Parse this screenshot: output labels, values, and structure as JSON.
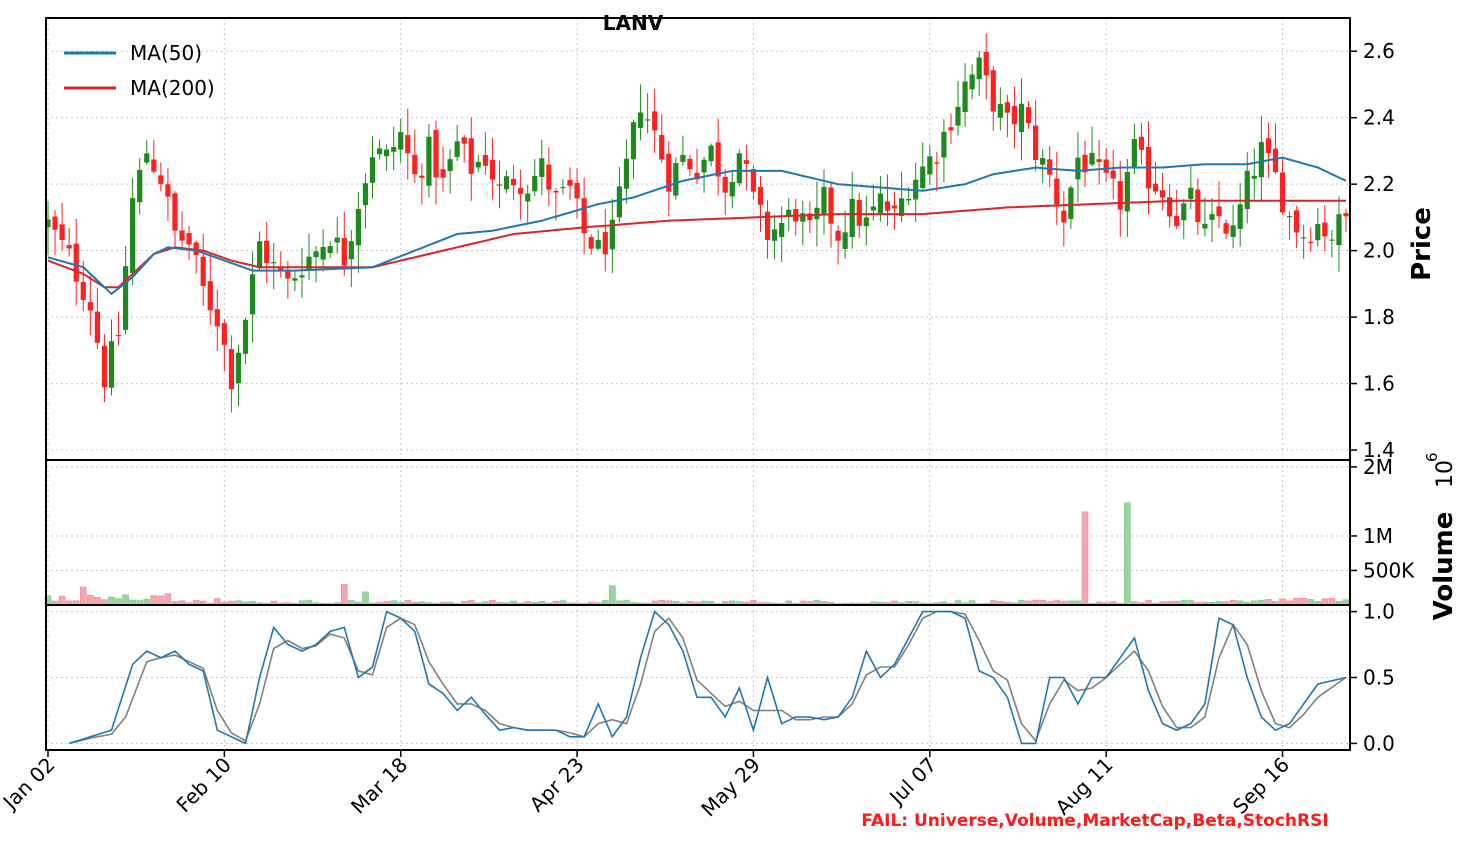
{
  "title": "LANV",
  "fail_text": "FAIL: Universe,Volume,MarketCap,Beta,StochRSI",
  "colors": {
    "up": "#1e8a1e",
    "down": "#ff2020",
    "ma50": "#1f77b4",
    "ma200": "#d62728",
    "vol_up": "#98d6a0",
    "vol_down": "#f4a6b0",
    "k_line": "#1f77b4",
    "d_line": "#808080"
  },
  "chart_data": [
    {
      "type": "candlestick",
      "title": "LANV",
      "ylabel": "Price",
      "ylim": [
        1.37,
        2.7
      ],
      "yticks": [
        1.4,
        1.6,
        1.8,
        2.0,
        2.2,
        2.4,
        2.6
      ],
      "x_tick_labels": [
        "Jan 02",
        "Feb 10",
        "Mar 18",
        "Apr 23",
        "May 29",
        "Jul 07",
        "Aug 11",
        "Sep 16"
      ],
      "x_tick_index": [
        0,
        25,
        50,
        75,
        100,
        125,
        150,
        175
      ],
      "legend": [
        "MA(50)",
        "MA(200)"
      ],
      "legend_position": "top-left",
      "grid": true,
      "close_keypoints": [
        [
          0,
          2.08
        ],
        [
          3,
          1.98
        ],
        [
          6,
          1.84
        ],
        [
          8,
          1.62
        ],
        [
          10,
          1.75
        ],
        [
          12,
          2.15
        ],
        [
          14,
          2.3
        ],
        [
          16,
          2.22
        ],
        [
          18,
          2.05
        ],
        [
          20,
          2.02
        ],
        [
          22,
          1.88
        ],
        [
          24,
          1.8
        ],
        [
          26,
          1.62
        ],
        [
          28,
          1.8
        ],
        [
          30,
          2.02
        ],
        [
          32,
          1.95
        ],
        [
          34,
          1.9
        ],
        [
          36,
          1.96
        ],
        [
          38,
          2.0
        ],
        [
          40,
          2.05
        ],
        [
          42,
          1.98
        ],
        [
          44,
          2.15
        ],
        [
          46,
          2.3
        ],
        [
          48,
          2.28
        ],
        [
          50,
          2.35
        ],
        [
          52,
          2.22
        ],
        [
          54,
          2.3
        ],
        [
          56,
          2.2
        ],
        [
          58,
          2.32
        ],
        [
          60,
          2.25
        ],
        [
          62,
          2.28
        ],
        [
          64,
          2.18
        ],
        [
          66,
          2.22
        ],
        [
          68,
          2.2
        ],
        [
          70,
          2.25
        ],
        [
          72,
          2.15
        ],
        [
          74,
          2.18
        ],
        [
          76,
          2.05
        ],
        [
          78,
          2.0
        ],
        [
          80,
          2.05
        ],
        [
          82,
          2.25
        ],
        [
          84,
          2.45
        ],
        [
          86,
          2.35
        ],
        [
          88,
          2.22
        ],
        [
          90,
          2.28
        ],
        [
          92,
          2.25
        ],
        [
          94,
          2.3
        ],
        [
          96,
          2.2
        ],
        [
          98,
          2.3
        ],
        [
          100,
          2.15
        ],
        [
          102,
          2.05
        ],
        [
          104,
          2.08
        ],
        [
          106,
          2.12
        ],
        [
          108,
          2.05
        ],
        [
          110,
          2.15
        ],
        [
          112,
          2.05
        ],
        [
          114,
          2.12
        ],
        [
          116,
          2.08
        ],
        [
          118,
          2.15
        ],
        [
          120,
          2.1
        ],
        [
          122,
          2.2
        ],
        [
          124,
          2.25
        ],
        [
          126,
          2.3
        ],
        [
          128,
          2.4
        ],
        [
          130,
          2.5
        ],
        [
          132,
          2.55
        ],
        [
          134,
          2.45
        ],
        [
          136,
          2.38
        ],
        [
          138,
          2.42
        ],
        [
          140,
          2.3
        ],
        [
          142,
          2.22
        ],
        [
          144,
          2.1
        ],
        [
          146,
          2.28
        ],
        [
          148,
          2.25
        ],
        [
          150,
          2.2
        ],
        [
          152,
          2.15
        ],
        [
          154,
          2.3
        ],
        [
          156,
          2.22
        ],
        [
          158,
          2.18
        ],
        [
          160,
          2.1
        ],
        [
          162,
          2.15
        ],
        [
          164,
          2.05
        ],
        [
          166,
          2.1
        ],
        [
          168,
          2.05
        ],
        [
          170,
          2.2
        ],
        [
          172,
          2.3
        ],
        [
          174,
          2.22
        ],
        [
          176,
          2.1
        ],
        [
          178,
          2.05
        ],
        [
          180,
          2.08
        ],
        [
          182,
          2.05
        ],
        [
          184,
          2.1
        ]
      ],
      "ma50_keypoints": [
        [
          0,
          1.98
        ],
        [
          5,
          1.95
        ],
        [
          9,
          1.87
        ],
        [
          12,
          1.92
        ],
        [
          15,
          1.99
        ],
        [
          17,
          2.01
        ],
        [
          21,
          2.0
        ],
        [
          25,
          1.97
        ],
        [
          29,
          1.94
        ],
        [
          35,
          1.94
        ],
        [
          46,
          1.95
        ],
        [
          52,
          2.0
        ],
        [
          58,
          2.05
        ],
        [
          63,
          2.06
        ],
        [
          70,
          2.09
        ],
        [
          78,
          2.14
        ],
        [
          83,
          2.16
        ],
        [
          90,
          2.21
        ],
        [
          97,
          2.24
        ],
        [
          104,
          2.24
        ],
        [
          112,
          2.2
        ],
        [
          118,
          2.19
        ],
        [
          124,
          2.18
        ],
        [
          130,
          2.2
        ],
        [
          134,
          2.23
        ],
        [
          140,
          2.25
        ],
        [
          146,
          2.24
        ],
        [
          152,
          2.25
        ],
        [
          158,
          2.25
        ],
        [
          164,
          2.26
        ],
        [
          170,
          2.26
        ],
        [
          175,
          2.28
        ],
        [
          180,
          2.25
        ],
        [
          184,
          2.21
        ]
      ],
      "ma200_keypoints": [
        [
          0,
          1.97
        ],
        [
          5,
          1.93
        ],
        [
          8,
          1.89
        ],
        [
          10,
          1.89
        ],
        [
          12,
          1.93
        ],
        [
          15,
          1.99
        ],
        [
          18,
          2.01
        ],
        [
          22,
          2.0
        ],
        [
          26,
          1.97
        ],
        [
          30,
          1.95
        ],
        [
          40,
          1.95
        ],
        [
          46,
          1.95
        ],
        [
          52,
          1.98
        ],
        [
          58,
          2.01
        ],
        [
          66,
          2.05
        ],
        [
          76,
          2.07
        ],
        [
          88,
          2.09
        ],
        [
          100,
          2.1
        ],
        [
          112,
          2.11
        ],
        [
          124,
          2.11
        ],
        [
          136,
          2.13
        ],
        [
          148,
          2.14
        ],
        [
          160,
          2.15
        ],
        [
          172,
          2.15
        ],
        [
          184,
          2.15
        ]
      ]
    },
    {
      "type": "bar",
      "ylabel": "Volume",
      "scale_label": "10^6",
      "ylim": [
        0,
        2.1
      ],
      "yticks": [
        0.5,
        1.0,
        2.0
      ],
      "ytick_labels": [
        "500K",
        "1M",
        "2M"
      ],
      "notable_bars": [
        {
          "index": 5,
          "value": 0.26
        },
        {
          "index": 42,
          "value": 0.3
        },
        {
          "index": 45,
          "value": 0.19
        },
        {
          "index": 80,
          "value": 0.28
        },
        {
          "index": 147,
          "value": 1.35
        },
        {
          "index": 153,
          "value": 1.48
        }
      ],
      "baseline_value": 0.02
    },
    {
      "type": "line",
      "ylabel": "",
      "ylim": [
        -0.05,
        1.05
      ],
      "yticks": [
        0.0,
        0.5,
        1.0
      ],
      "ytick_labels": [
        "0.0",
        "0.5",
        "1.0"
      ],
      "k_keypoints": [
        [
          3,
          0.0
        ],
        [
          6,
          0.05
        ],
        [
          9,
          0.1
        ],
        [
          12,
          0.6
        ],
        [
          14,
          0.7
        ],
        [
          16,
          0.65
        ],
        [
          18,
          0.7
        ],
        [
          20,
          0.6
        ],
        [
          22,
          0.55
        ],
        [
          24,
          0.1
        ],
        [
          26,
          0.05
        ],
        [
          28,
          0.0
        ],
        [
          30,
          0.5
        ],
        [
          32,
          0.88
        ],
        [
          34,
          0.75
        ],
        [
          36,
          0.7
        ],
        [
          38,
          0.75
        ],
        [
          40,
          0.85
        ],
        [
          42,
          0.88
        ],
        [
          44,
          0.5
        ],
        [
          46,
          0.58
        ],
        [
          48,
          1.0
        ],
        [
          50,
          0.95
        ],
        [
          52,
          0.85
        ],
        [
          54,
          0.45
        ],
        [
          56,
          0.38
        ],
        [
          58,
          0.25
        ],
        [
          60,
          0.35
        ],
        [
          62,
          0.22
        ],
        [
          64,
          0.1
        ],
        [
          66,
          0.12
        ],
        [
          68,
          0.1
        ],
        [
          70,
          0.1
        ],
        [
          72,
          0.1
        ],
        [
          74,
          0.05
        ],
        [
          76,
          0.05
        ],
        [
          78,
          0.3
        ],
        [
          80,
          0.05
        ],
        [
          82,
          0.2
        ],
        [
          84,
          0.65
        ],
        [
          86,
          1.0
        ],
        [
          88,
          0.9
        ],
        [
          90,
          0.7
        ],
        [
          92,
          0.35
        ],
        [
          94,
          0.35
        ],
        [
          96,
          0.2
        ],
        [
          98,
          0.42
        ],
        [
          100,
          0.1
        ],
        [
          102,
          0.5
        ],
        [
          104,
          0.15
        ],
        [
          106,
          0.2
        ],
        [
          108,
          0.2
        ],
        [
          110,
          0.18
        ],
        [
          112,
          0.2
        ],
        [
          114,
          0.35
        ],
        [
          116,
          0.7
        ],
        [
          118,
          0.5
        ],
        [
          120,
          0.6
        ],
        [
          122,
          0.8
        ],
        [
          124,
          1.0
        ],
        [
          126,
          1.0
        ],
        [
          128,
          1.0
        ],
        [
          130,
          0.95
        ],
        [
          132,
          0.55
        ],
        [
          134,
          0.5
        ],
        [
          136,
          0.35
        ],
        [
          138,
          0.0
        ],
        [
          140,
          0.0
        ],
        [
          142,
          0.5
        ],
        [
          144,
          0.5
        ],
        [
          146,
          0.3
        ],
        [
          148,
          0.5
        ],
        [
          150,
          0.5
        ],
        [
          152,
          0.65
        ],
        [
          154,
          0.8
        ],
        [
          156,
          0.4
        ],
        [
          158,
          0.15
        ],
        [
          160,
          0.1
        ],
        [
          162,
          0.15
        ],
        [
          164,
          0.3
        ],
        [
          166,
          0.95
        ],
        [
          168,
          0.9
        ],
        [
          170,
          0.5
        ],
        [
          172,
          0.2
        ],
        [
          174,
          0.1
        ],
        [
          176,
          0.15
        ],
        [
          178,
          0.3
        ],
        [
          180,
          0.45
        ],
        [
          184,
          0.5
        ]
      ],
      "d_keypoints": [
        [
          3,
          0.0
        ],
        [
          6,
          0.04
        ],
        [
          9,
          0.07
        ],
        [
          11,
          0.2
        ],
        [
          14,
          0.62
        ],
        [
          16,
          0.65
        ],
        [
          18,
          0.67
        ],
        [
          20,
          0.62
        ],
        [
          22,
          0.57
        ],
        [
          24,
          0.25
        ],
        [
          26,
          0.08
        ],
        [
          28,
          0.02
        ],
        [
          30,
          0.3
        ],
        [
          32,
          0.72
        ],
        [
          34,
          0.78
        ],
        [
          36,
          0.72
        ],
        [
          38,
          0.74
        ],
        [
          40,
          0.83
        ],
        [
          42,
          0.8
        ],
        [
          44,
          0.55
        ],
        [
          46,
          0.52
        ],
        [
          48,
          0.88
        ],
        [
          50,
          0.95
        ],
        [
          52,
          0.9
        ],
        [
          54,
          0.62
        ],
        [
          56,
          0.45
        ],
        [
          58,
          0.3
        ],
        [
          60,
          0.3
        ],
        [
          62,
          0.25
        ],
        [
          64,
          0.15
        ],
        [
          66,
          0.12
        ],
        [
          68,
          0.1
        ],
        [
          70,
          0.1
        ],
        [
          72,
          0.1
        ],
        [
          74,
          0.08
        ],
        [
          76,
          0.05
        ],
        [
          78,
          0.15
        ],
        [
          80,
          0.18
        ],
        [
          82,
          0.15
        ],
        [
          84,
          0.45
        ],
        [
          86,
          0.85
        ],
        [
          88,
          0.95
        ],
        [
          90,
          0.8
        ],
        [
          92,
          0.48
        ],
        [
          94,
          0.38
        ],
        [
          96,
          0.28
        ],
        [
          98,
          0.32
        ],
        [
          100,
          0.25
        ],
        [
          102,
          0.25
        ],
        [
          104,
          0.25
        ],
        [
          106,
          0.18
        ],
        [
          108,
          0.18
        ],
        [
          110,
          0.2
        ],
        [
          112,
          0.2
        ],
        [
          114,
          0.3
        ],
        [
          116,
          0.52
        ],
        [
          118,
          0.58
        ],
        [
          120,
          0.58
        ],
        [
          122,
          0.75
        ],
        [
          124,
          0.95
        ],
        [
          126,
          1.0
        ],
        [
          128,
          1.0
        ],
        [
          130,
          0.98
        ],
        [
          132,
          0.78
        ],
        [
          134,
          0.55
        ],
        [
          136,
          0.48
        ],
        [
          138,
          0.15
        ],
        [
          140,
          0.02
        ],
        [
          142,
          0.3
        ],
        [
          144,
          0.48
        ],
        [
          146,
          0.4
        ],
        [
          148,
          0.42
        ],
        [
          150,
          0.5
        ],
        [
          152,
          0.6
        ],
        [
          154,
          0.7
        ],
        [
          156,
          0.55
        ],
        [
          158,
          0.28
        ],
        [
          160,
          0.12
        ],
        [
          162,
          0.12
        ],
        [
          164,
          0.2
        ],
        [
          166,
          0.65
        ],
        [
          168,
          0.9
        ],
        [
          170,
          0.75
        ],
        [
          172,
          0.4
        ],
        [
          174,
          0.15
        ],
        [
          176,
          0.12
        ],
        [
          178,
          0.22
        ],
        [
          180,
          0.35
        ],
        [
          184,
          0.5
        ]
      ]
    }
  ]
}
